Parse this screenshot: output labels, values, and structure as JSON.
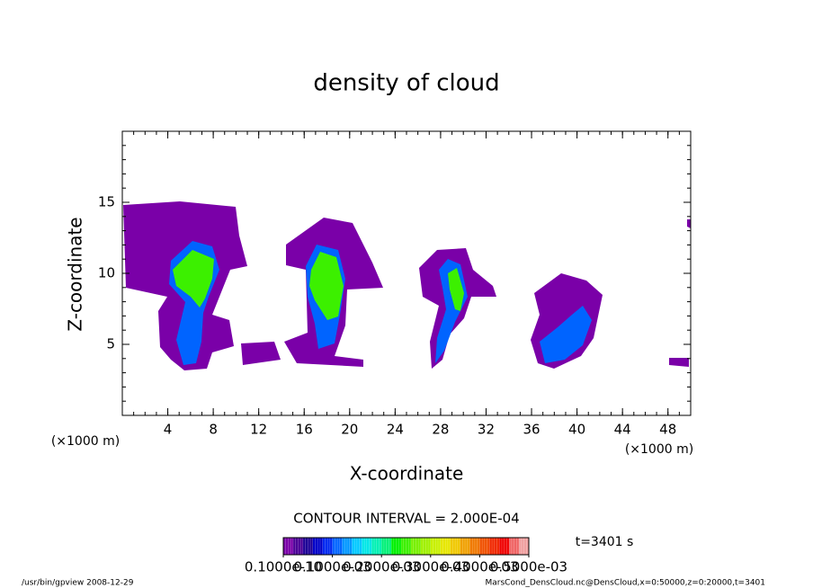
{
  "chart_data": {
    "type": "contour",
    "title": "density of cloud",
    "x_label": "X-coordinate",
    "y_label": "Z-coordinate",
    "x_unit": "(×1000 m)",
    "y_unit": "(×1000 m)",
    "xlim": [
      0,
      50
    ],
    "ylim": [
      0,
      20
    ],
    "xticks": [
      4,
      8,
      12,
      16,
      20,
      24,
      28,
      32,
      36,
      40,
      44,
      48
    ],
    "yticks": [
      5,
      10,
      15
    ],
    "xminor_step": 1,
    "yminor_step": 1,
    "contour_interval": "CONTOUR INTERVAL = 2.000E-04",
    "time_label": "t=3401 s",
    "colorbar": {
      "clim": [
        0,
        0.0005
      ],
      "ticks": [
        {
          "value": 1e-11,
          "label": "0.1000e-10"
        },
        {
          "value": 0.0001,
          "label": "0.1000e-03"
        },
        {
          "value": 0.0002,
          "label": "0.2000e-03"
        },
        {
          "value": 0.0003,
          "label": "0.3000e-03"
        },
        {
          "value": 0.0004,
          "label": "0.4000e-03"
        },
        {
          "value": 0.0005,
          "label": "0.5000e-03"
        }
      ],
      "colors": [
        "#7a00a8",
        "#4b0096",
        "#1e0096",
        "#0000c8",
        "#0028f0",
        "#0064ff",
        "#0096ff",
        "#00c8ff",
        "#00e6e6",
        "#00f0b4",
        "#00f078",
        "#00f000",
        "#3cf000",
        "#78f000",
        "#a0f000",
        "#c8f000",
        "#e6e600",
        "#f0c800",
        "#f0a000",
        "#f07800",
        "#f05000",
        "#f02800",
        "#f00000",
        "#f06464",
        "#f0a0a0"
      ]
    },
    "footer_left": "/usr/bin/gpview   2008-12-29",
    "footer_right": "MarsCond_DensCloud.nc@DensCloud,x=0:50000,z=0:20000,t=3401"
  }
}
